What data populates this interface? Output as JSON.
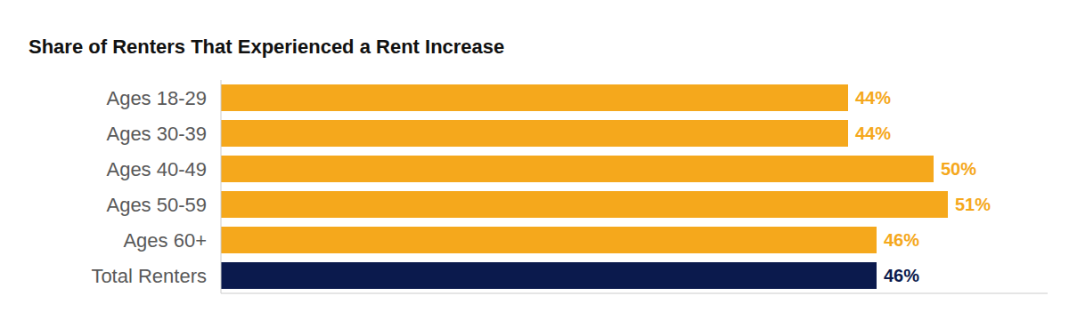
{
  "chart_data": {
    "type": "bar",
    "title": "Share of Renters That Experienced a Rent Increase",
    "orientation": "horizontal",
    "categories": [
      "Ages 18-29",
      "Ages 30-39",
      "Ages 40-49",
      "Ages 50-59",
      "Ages 60+",
      "Total Renters"
    ],
    "values": [
      44,
      44,
      50,
      51,
      46,
      46
    ],
    "value_labels": [
      "44%",
      "44%",
      "50%",
      "51%",
      "46%",
      "46%"
    ],
    "colors": [
      "#f5a81c",
      "#f5a81c",
      "#f5a81c",
      "#f5a81c",
      "#f5a81c",
      "#0b1a4d"
    ],
    "xlim": [
      0,
      58
    ],
    "grid": false,
    "data_labels": true,
    "tick_labels": "y"
  }
}
